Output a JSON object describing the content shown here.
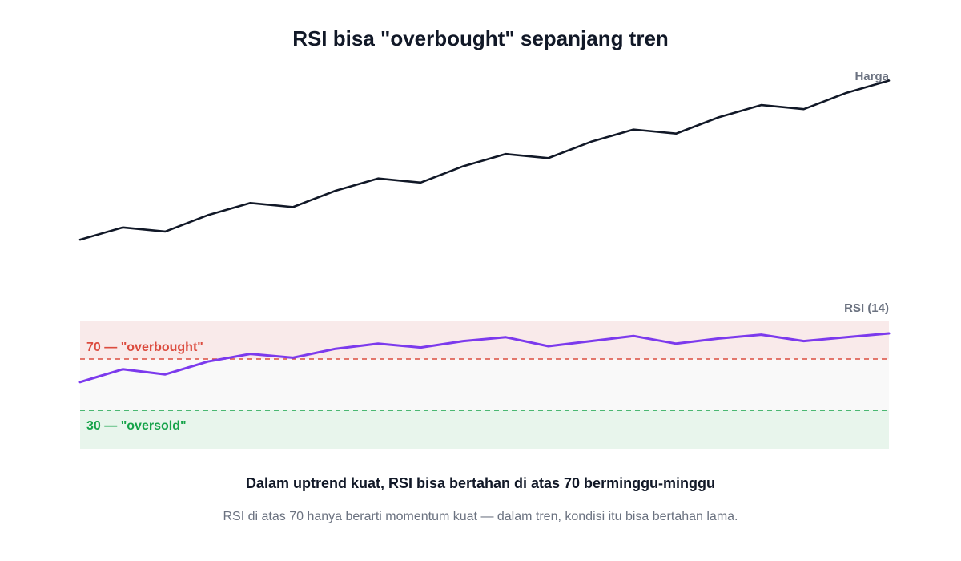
{
  "colors": {
    "price": "#111827",
    "rsi": "#7c3aed",
    "overbought": "#dc4c3f",
    "oversold": "#16a34a",
    "overbought_zone": "#f9eaea",
    "neutral_zone": "#f9f9f9",
    "oversold_zone": "#e8f5ec",
    "muted": "#6b7280"
  },
  "chart_data": [
    {
      "type": "line",
      "title": "RSI bisa \"overbought\" sepanjang tren",
      "series": [
        {
          "name": "Harga",
          "values": [
            10,
            13,
            12,
            16,
            19,
            18,
            22,
            25,
            24,
            28,
            31,
            30,
            34,
            37,
            36,
            40,
            43,
            42,
            46,
            49
          ]
        }
      ],
      "grid": false,
      "ylim": [
        0,
        55
      ]
    },
    {
      "type": "line",
      "series": [
        {
          "name": "RSI (14)",
          "values": [
            52,
            62,
            58,
            68,
            74,
            71,
            78,
            82,
            79,
            84,
            87,
            80,
            84,
            88,
            82,
            86,
            89,
            84,
            87,
            90
          ]
        }
      ],
      "ylim": [
        0,
        100
      ],
      "levels": [
        {
          "value": 70,
          "label": "70 — \"overbought\""
        },
        {
          "value": 30,
          "label": "30 — \"oversold\""
        }
      ]
    }
  ],
  "caption": "Dalam uptrend kuat, RSI bisa bertahan di atas 70 berminggu-minggu",
  "subcaption": "RSI di atas 70 hanya berarti momentum kuat — dalam tren, kondisi itu bisa bertahan lama."
}
